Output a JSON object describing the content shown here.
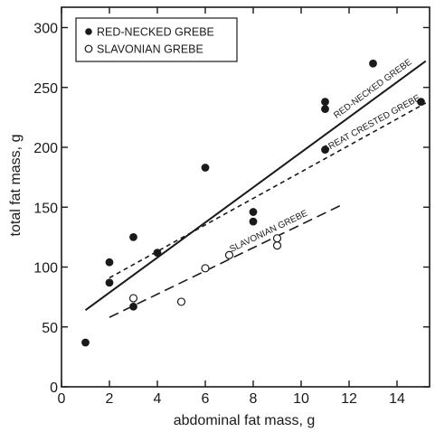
{
  "chart_data": {
    "type": "scatter",
    "title": "",
    "xlabel": "abdominal fat mass, g",
    "ylabel": "total fat mass, g",
    "xlim": [
      0,
      16
    ],
    "ylim": [
      0,
      320
    ],
    "x_ticks": [
      0,
      2,
      4,
      6,
      8,
      10,
      12,
      14
    ],
    "y_ticks": [
      0,
      50,
      100,
      150,
      200,
      250,
      300
    ],
    "x_tick_labels": [
      "0",
      "2",
      "4",
      "6",
      "8",
      "10",
      "12",
      "14"
    ],
    "y_tick_labels": [
      "0",
      "50",
      "100",
      "150",
      "200",
      "250",
      "300"
    ],
    "grid": false,
    "legend_position": "top-left",
    "legend": [
      {
        "label": "RED-NECKED GREBE",
        "marker": "filled-circle"
      },
      {
        "label": "SLAVONIAN GREBE",
        "marker": "open-circle"
      }
    ],
    "series": [
      {
        "name": "RED-NECKED GREBE",
        "marker": "filled-circle",
        "points": [
          [
            1,
            37
          ],
          [
            2,
            87
          ],
          [
            2,
            104
          ],
          [
            3,
            67
          ],
          [
            3,
            125
          ],
          [
            4,
            112
          ],
          [
            6,
            183
          ],
          [
            8,
            138
          ],
          [
            8,
            146
          ],
          [
            11,
            198
          ],
          [
            11,
            232
          ],
          [
            11,
            238
          ],
          [
            13,
            270
          ],
          [
            15,
            238
          ]
        ]
      },
      {
        "name": "SLAVONIAN GREBE",
        "marker": "open-circle",
        "points": [
          [
            3,
            74
          ],
          [
            5,
            71
          ],
          [
            6,
            99
          ],
          [
            7,
            110
          ],
          [
            9,
            118
          ],
          [
            9,
            124
          ]
        ]
      }
    ],
    "regression_lines": [
      {
        "name": "RED-NECKED GREBE",
        "label": "RED-NECKED GREBE",
        "style": "solid",
        "x": [
          1,
          15.2
        ],
        "y": [
          64,
          272
        ]
      },
      {
        "name": "GREAT CRESTED GREBE",
        "label": "GREAT CRESTED GREBE",
        "style": "short-dash",
        "x": [
          2,
          15.2
        ],
        "y": [
          91,
          237
        ]
      },
      {
        "name": "SLAVONIAN GREBE",
        "label": "SLAVONIAN GREBE",
        "style": "long-dash",
        "x": [
          2,
          11.7
        ],
        "y": [
          58,
          152
        ]
      }
    ],
    "colors": {
      "ink": "#1a1a1a",
      "background": "#ffffff"
    }
  }
}
